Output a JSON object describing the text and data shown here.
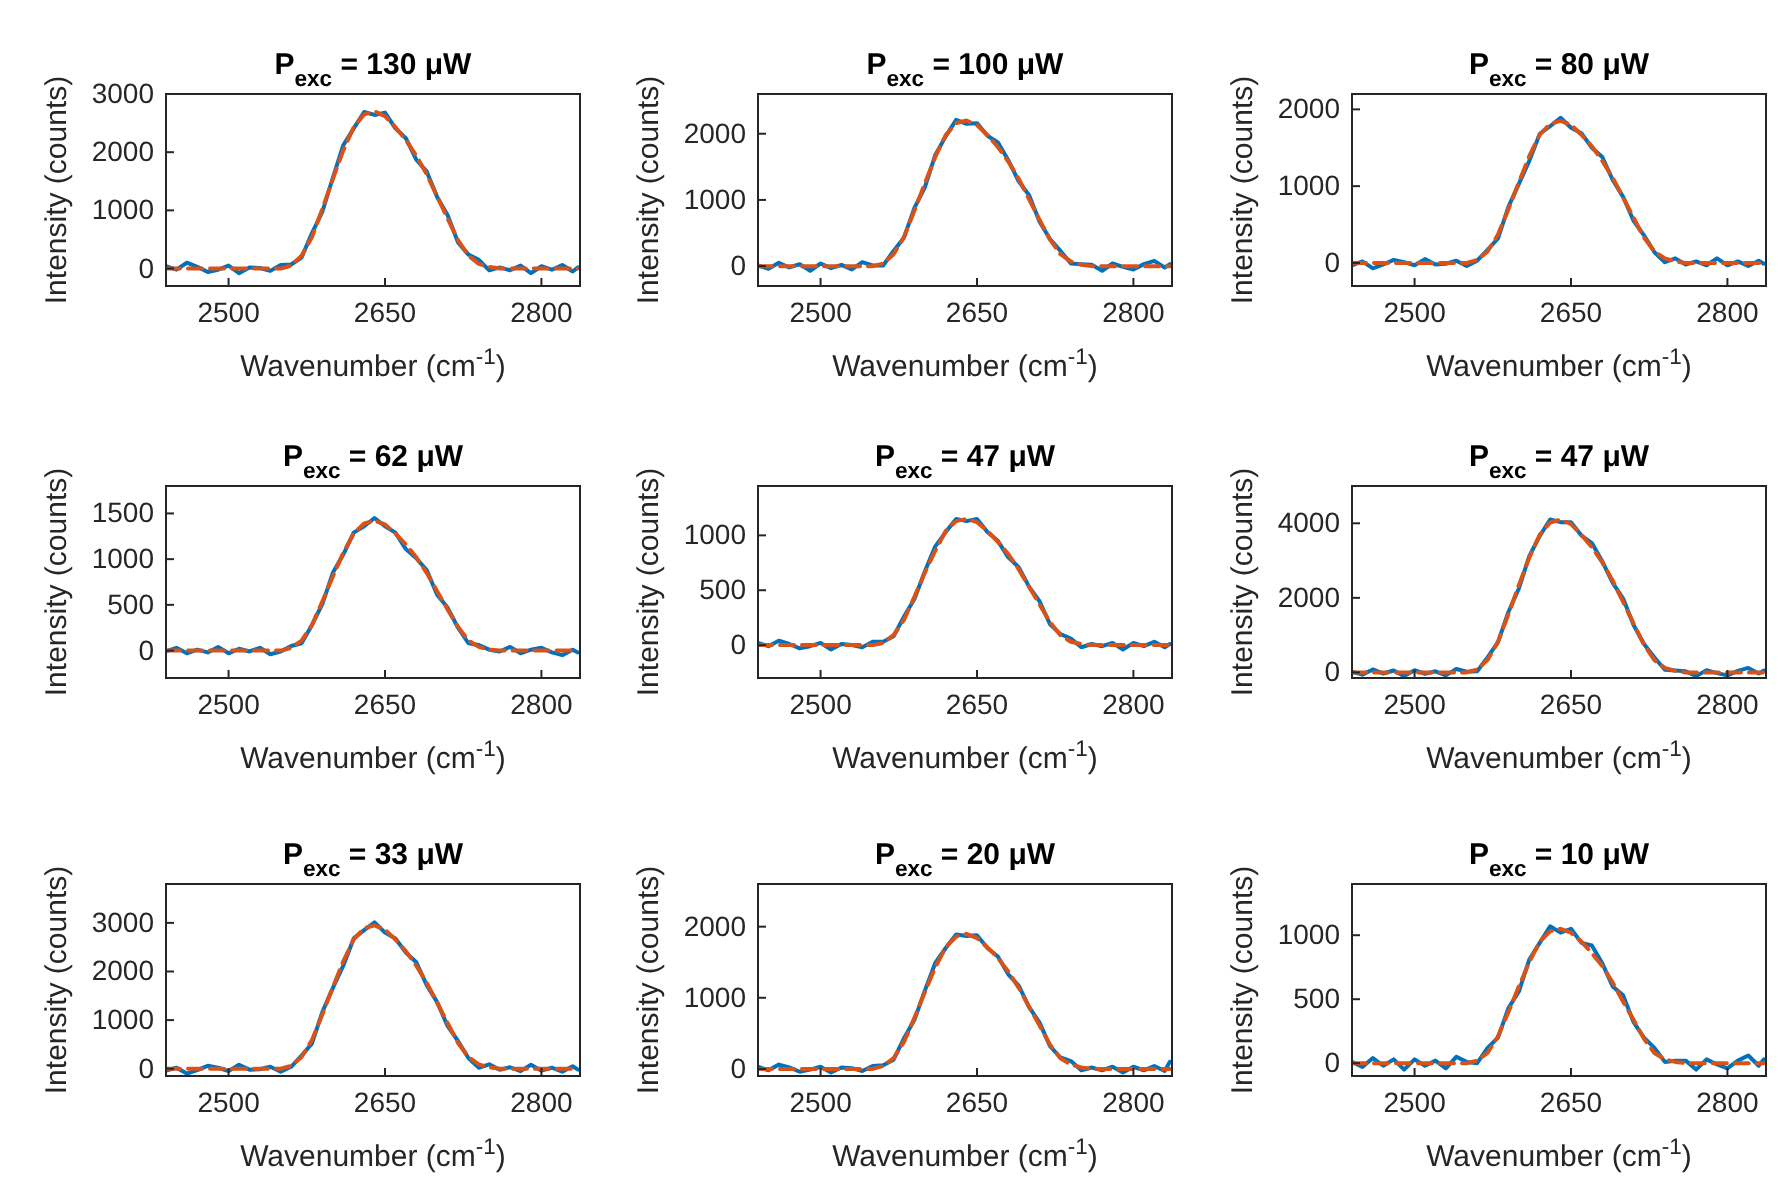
{
  "chart_data": [
    {
      "type": "line",
      "title": "P$_{exc}$ = 130 μW",
      "xlabel": "Wavenumber (cm$^{-1}$)",
      "ylabel": "Intensity (counts)",
      "xlim": [
        2440,
        2837
      ],
      "xticks": [
        2500,
        2650,
        2800
      ],
      "ylim": [
        -300,
        3000
      ],
      "yticks": [
        0,
        1000,
        2000,
        3000
      ],
      "x": [
        2440,
        2450,
        2460,
        2470,
        2480,
        2490,
        2500,
        2510,
        2520,
        2530,
        2540,
        2550,
        2560,
        2570,
        2580,
        2590,
        2600,
        2610,
        2620,
        2630,
        2640,
        2650,
        2660,
        2670,
        2680,
        2690,
        2700,
        2710,
        2720,
        2730,
        2740,
        2750,
        2760,
        2770,
        2780,
        2790,
        2800,
        2810,
        2820,
        2830,
        2835
      ],
      "series": [
        {
          "color": "#0072bd",
          "line_style": "solid",
          "values": [
            40,
            -20,
            100,
            30,
            -60,
            -20,
            50,
            -80,
            20,
            10,
            -40,
            60,
            70,
            190,
            610,
            980,
            1560,
            2120,
            2410,
            2690,
            2640,
            2680,
            2410,
            2240,
            1870,
            1670,
            1230,
            920,
            450,
            240,
            150,
            -30,
            20,
            -30,
            50,
            -80,
            40,
            -20,
            60,
            -50,
            20
          ]
        },
        {
          "color": "#d95319",
          "line_style": "dashed",
          "values": [
            0,
            0,
            0,
            0,
            0,
            0,
            0,
            0,
            0,
            0,
            0,
            0,
            50,
            220,
            540,
            1030,
            1540,
            2030,
            2430,
            2650,
            2700,
            2620,
            2430,
            2210,
            1940,
            1620,
            1240,
            860,
            490,
            220,
            80,
            30,
            0,
            0,
            0,
            0,
            0,
            0,
            0,
            0,
            0
          ]
        }
      ]
    },
    {
      "type": "line",
      "title": "P$_{exc}$ = 100 μW",
      "xlabel": "Wavenumber (cm$^{-1}$)",
      "ylabel": "Intensity (counts)",
      "xlim": [
        2440,
        2837
      ],
      "xticks": [
        2500,
        2650,
        2800
      ],
      "ylim": [
        -300,
        2600
      ],
      "yticks": [
        0,
        1000,
        2000
      ],
      "x": [
        2440,
        2450,
        2460,
        2470,
        2480,
        2490,
        2500,
        2510,
        2520,
        2530,
        2540,
        2550,
        2560,
        2570,
        2580,
        2590,
        2600,
        2610,
        2620,
        2630,
        2640,
        2650,
        2660,
        2670,
        2680,
        2690,
        2700,
        2710,
        2720,
        2730,
        2740,
        2750,
        2760,
        2770,
        2780,
        2790,
        2800,
        2810,
        2820,
        2830,
        2835
      ],
      "series": [
        {
          "color": "#0072bd",
          "line_style": "solid",
          "values": [
            10,
            -40,
            50,
            -20,
            30,
            -70,
            40,
            -30,
            20,
            -50,
            60,
            10,
            10,
            230,
            430,
            880,
            1190,
            1680,
            1960,
            2210,
            2150,
            2160,
            1970,
            1870,
            1600,
            1280,
            1070,
            670,
            410,
            230,
            40,
            30,
            20,
            -70,
            40,
            -10,
            -50,
            30,
            80,
            -20,
            30
          ]
        },
        {
          "color": "#d95319",
          "line_style": "dashed",
          "values": [
            0,
            0,
            0,
            0,
            0,
            0,
            0,
            0,
            0,
            0,
            0,
            0,
            40,
            180,
            440,
            840,
            1250,
            1650,
            1980,
            2160,
            2200,
            2130,
            1980,
            1800,
            1580,
            1320,
            1010,
            700,
            400,
            180,
            70,
            20,
            0,
            0,
            0,
            0,
            0,
            0,
            0,
            0,
            0
          ]
        }
      ]
    },
    {
      "type": "line",
      "title": "P$_{exc}$ = 80 μW",
      "xlabel": "Wavenumber (cm$^{-1}$)",
      "ylabel": "Intensity (counts)",
      "xlim": [
        2440,
        2837
      ],
      "xticks": [
        2500,
        2650,
        2800
      ],
      "ylim": [
        -300,
        2200
      ],
      "yticks": [
        0,
        1000,
        2000
      ],
      "x": [
        2440,
        2450,
        2460,
        2470,
        2480,
        2490,
        2500,
        2510,
        2520,
        2530,
        2540,
        2550,
        2560,
        2570,
        2580,
        2590,
        2600,
        2610,
        2620,
        2630,
        2640,
        2650,
        2660,
        2670,
        2680,
        2690,
        2700,
        2710,
        2720,
        2730,
        2740,
        2750,
        2760,
        2770,
        2780,
        2790,
        2800,
        2810,
        2820,
        2830,
        2835
      ],
      "series": [
        {
          "color": "#0072bd",
          "line_style": "solid",
          "values": [
            -30,
            20,
            -70,
            -20,
            40,
            10,
            -30,
            50,
            -20,
            -10,
            30,
            -40,
            30,
            170,
            320,
            730,
            1030,
            1330,
            1680,
            1780,
            1890,
            1760,
            1690,
            1500,
            1380,
            1080,
            860,
            550,
            360,
            140,
            10,
            60,
            -20,
            20,
            -30,
            60,
            -30,
            20,
            -40,
            30,
            -10
          ]
        },
        {
          "color": "#d95319",
          "line_style": "dashed",
          "values": [
            0,
            0,
            0,
            0,
            0,
            0,
            0,
            0,
            0,
            0,
            0,
            0,
            40,
            150,
            370,
            700,
            1050,
            1390,
            1670,
            1810,
            1850,
            1800,
            1670,
            1520,
            1330,
            1110,
            850,
            590,
            330,
            150,
            60,
            20,
            0,
            0,
            0,
            0,
            0,
            0,
            0,
            0,
            0
          ]
        }
      ]
    },
    {
      "type": "line",
      "title": "P$_{exc}$ = 62 μW",
      "xlabel": "Wavenumber (cm$^{-1}$)",
      "ylabel": "Intensity (counts)",
      "xlim": [
        2440,
        2837
      ],
      "xticks": [
        2500,
        2650,
        2800
      ],
      "ylim": [
        -300,
        1800
      ],
      "yticks": [
        0,
        500,
        1000,
        1500
      ],
      "x": [
        2440,
        2450,
        2460,
        2470,
        2480,
        2490,
        2500,
        2510,
        2520,
        2530,
        2540,
        2550,
        2560,
        2570,
        2580,
        2590,
        2600,
        2610,
        2620,
        2630,
        2640,
        2650,
        2660,
        2670,
        2680,
        2690,
        2700,
        2710,
        2720,
        2730,
        2740,
        2750,
        2760,
        2770,
        2780,
        2790,
        2800,
        2810,
        2820,
        2830,
        2835
      ],
      "series": [
        {
          "color": "#0072bd",
          "line_style": "solid",
          "values": [
            -10,
            30,
            -30,
            10,
            -20,
            40,
            -30,
            20,
            -10,
            30,
            -40,
            -10,
            50,
            80,
            280,
            510,
            850,
            1050,
            1290,
            1360,
            1450,
            1360,
            1290,
            1110,
            1010,
            880,
            610,
            470,
            250,
            80,
            60,
            10,
            -10,
            40,
            -30,
            10,
            30,
            -20,
            -50,
            10,
            -20
          ]
        },
        {
          "color": "#d95319",
          "line_style": "dashed",
          "values": [
            0,
            0,
            0,
            0,
            0,
            0,
            0,
            0,
            0,
            0,
            0,
            0,
            30,
            110,
            280,
            540,
            810,
            1070,
            1280,
            1390,
            1420,
            1380,
            1280,
            1160,
            1020,
            850,
            650,
            450,
            260,
            110,
            40,
            10,
            0,
            0,
            0,
            0,
            0,
            0,
            0,
            0,
            0
          ]
        }
      ]
    },
    {
      "type": "line",
      "title": "P$_{exc}$ = 47 μW",
      "xlabel": "Wavenumber (cm$^{-1}$)",
      "ylabel": "Intensity (counts)",
      "xlim": [
        2440,
        2837
      ],
      "xticks": [
        2500,
        2650,
        2800
      ],
      "ylim": [
        -300,
        1450
      ],
      "yticks": [
        0,
        500,
        1000
      ],
      "x": [
        2440,
        2450,
        2460,
        2470,
        2480,
        2490,
        2500,
        2510,
        2520,
        2530,
        2540,
        2550,
        2560,
        2570,
        2580,
        2590,
        2600,
        2610,
        2620,
        2630,
        2640,
        2650,
        2660,
        2670,
        2680,
        2690,
        2700,
        2710,
        2720,
        2730,
        2740,
        2750,
        2760,
        2770,
        2780,
        2790,
        2800,
        2810,
        2820,
        2830,
        2835
      ],
      "series": [
        {
          "color": "#0072bd",
          "line_style": "solid",
          "values": [
            20,
            -10,
            40,
            10,
            -30,
            -10,
            20,
            -40,
            10,
            0,
            -20,
            30,
            30,
            80,
            260,
            420,
            670,
            900,
            1030,
            1150,
            1130,
            1150,
            1030,
            950,
            800,
            710,
            530,
            400,
            190,
            100,
            60,
            -20,
            10,
            -10,
            20,
            -40,
            20,
            -10,
            30,
            -20,
            10
          ]
        },
        {
          "color": "#d95319",
          "line_style": "dashed",
          "values": [
            0,
            0,
            0,
            0,
            0,
            0,
            0,
            0,
            0,
            0,
            0,
            0,
            20,
            90,
            230,
            440,
            660,
            860,
            1040,
            1130,
            1150,
            1120,
            1040,
            940,
            830,
            690,
            530,
            370,
            210,
            90,
            30,
            10,
            0,
            0,
            0,
            0,
            0,
            0,
            0,
            0,
            0
          ]
        }
      ]
    },
    {
      "type": "line",
      "title": "P$_{exc}$ = 47 μW",
      "xlabel": "Wavenumber (cm$^{-1}$)",
      "ylabel": "Intensity (counts)",
      "xlim": [
        2440,
        2837
      ],
      "xticks": [
        2500,
        2650,
        2800
      ],
      "ylim": [
        -150,
        5000
      ],
      "yticks": [
        0,
        2000,
        4000
      ],
      "x": [
        2440,
        2450,
        2460,
        2470,
        2480,
        2490,
        2500,
        2510,
        2520,
        2530,
        2540,
        2550,
        2560,
        2570,
        2580,
        2590,
        2600,
        2610,
        2620,
        2630,
        2640,
        2650,
        2660,
        2670,
        2680,
        2690,
        2700,
        2710,
        2720,
        2730,
        2740,
        2750,
        2760,
        2770,
        2780,
        2790,
        2800,
        2810,
        2820,
        2830,
        2835
      ],
      "series": [
        {
          "color": "#0072bd",
          "line_style": "solid",
          "values": [
            20,
            -60,
            80,
            -30,
            50,
            -100,
            60,
            -40,
            30,
            -80,
            90,
            20,
            30,
            400,
            810,
            1620,
            2250,
            3120,
            3660,
            4100,
            4030,
            4030,
            3670,
            3470,
            2980,
            2400,
            1980,
            1270,
            760,
            400,
            70,
            50,
            30,
            -100,
            60,
            -20,
            -80,
            40,
            120,
            -30,
            50
          ]
        },
        {
          "color": "#d95319",
          "line_style": "dashed",
          "values": [
            0,
            0,
            0,
            0,
            0,
            0,
            0,
            0,
            0,
            0,
            0,
            0,
            80,
            330,
            820,
            1560,
            2340,
            3080,
            3690,
            4020,
            4100,
            3980,
            3690,
            3360,
            2950,
            2460,
            1890,
            1310,
            740,
            330,
            120,
            40,
            0,
            0,
            0,
            0,
            0,
            0,
            0,
            0,
            0
          ]
        }
      ]
    },
    {
      "type": "line",
      "title": "P$_{exc}$ = 33 μW",
      "xlabel": "Wavenumber (cm$^{-1}$)",
      "ylabel": "Intensity (counts)",
      "xlim": [
        2440,
        2837
      ],
      "xticks": [
        2500,
        2650,
        2800
      ],
      "ylim": [
        -150,
        3800
      ],
      "yticks": [
        0,
        1000,
        2000,
        3000
      ],
      "x": [
        2440,
        2450,
        2460,
        2470,
        2480,
        2490,
        2500,
        2510,
        2520,
        2530,
        2540,
        2550,
        2560,
        2570,
        2580,
        2590,
        2600,
        2610,
        2620,
        2630,
        2640,
        2650,
        2660,
        2670,
        2680,
        2690,
        2700,
        2710,
        2720,
        2730,
        2740,
        2750,
        2760,
        2770,
        2780,
        2790,
        2800,
        2810,
        2820,
        2830,
        2835
      ],
      "series": [
        {
          "color": "#0072bd",
          "line_style": "solid",
          "values": [
            -40,
            20,
            -100,
            -30,
            60,
            20,
            -50,
            80,
            -20,
            -10,
            40,
            -60,
            40,
            270,
            520,
            1170,
            1660,
            2120,
            2680,
            2850,
            3010,
            2800,
            2680,
            2390,
            2190,
            1720,
            1370,
            880,
            570,
            220,
            20,
            90,
            -20,
            30,
            -50,
            80,
            -40,
            20,
            -60,
            50,
            -20
          ]
        },
        {
          "color": "#d95319",
          "line_style": "dashed",
          "values": [
            0,
            0,
            0,
            0,
            0,
            0,
            0,
            0,
            0,
            0,
            0,
            0,
            60,
            240,
            590,
            1120,
            1680,
            2210,
            2660,
            2890,
            2950,
            2860,
            2660,
            2420,
            2120,
            1770,
            1360,
            940,
            530,
            240,
            90,
            30,
            0,
            0,
            0,
            0,
            0,
            0,
            0,
            0,
            0
          ]
        }
      ]
    },
    {
      "type": "line",
      "title": "P$_{exc}$ = 20 μW",
      "xlabel": "Wavenumber (cm$^{-1}$)",
      "ylabel": "Intensity (counts)",
      "xlim": [
        2440,
        2837
      ],
      "xticks": [
        2500,
        2650,
        2800
      ],
      "ylim": [
        -100,
        2600
      ],
      "yticks": [
        0,
        1000,
        2000
      ],
      "x": [
        2440,
        2450,
        2460,
        2470,
        2480,
        2490,
        2500,
        2510,
        2520,
        2530,
        2540,
        2550,
        2560,
        2570,
        2580,
        2590,
        2600,
        2610,
        2620,
        2630,
        2640,
        2650,
        2660,
        2670,
        2680,
        2690,
        2700,
        2710,
        2720,
        2730,
        2740,
        2750,
        2760,
        2770,
        2780,
        2790,
        2800,
        2810,
        2820,
        2830,
        2835
      ],
      "series": [
        {
          "color": "#0072bd",
          "line_style": "solid",
          "values": [
            30,
            -20,
            60,
            20,
            -40,
            -10,
            30,
            -50,
            20,
            10,
            -30,
            40,
            50,
            130,
            430,
            690,
            1100,
            1490,
            1700,
            1890,
            1870,
            1880,
            1700,
            1580,
            1330,
            1170,
            870,
            650,
            320,
            160,
            110,
            -20,
            20,
            -20,
            30,
            -50,
            30,
            -20,
            40,
            -30,
            100
          ]
        },
        {
          "color": "#d95319",
          "line_style": "dashed",
          "values": [
            0,
            0,
            0,
            0,
            0,
            0,
            0,
            0,
            0,
            0,
            0,
            0,
            40,
            150,
            380,
            720,
            1080,
            1430,
            1710,
            1860,
            1900,
            1840,
            1710,
            1560,
            1370,
            1140,
            870,
            610,
            340,
            150,
            60,
            20,
            0,
            0,
            0,
            0,
            0,
            0,
            0,
            0,
            0
          ]
        }
      ]
    },
    {
      "type": "line",
      "title": "P$_{exc}$ = 10 μW",
      "xlabel": "Wavenumber (cm$^{-1}$)",
      "ylabel": "Intensity (counts)",
      "xlim": [
        2440,
        2837
      ],
      "xticks": [
        2500,
        2650,
        2800
      ],
      "ylim": [
        -100,
        1400
      ],
      "yticks": [
        0,
        500,
        1000
      ],
      "x": [
        2440,
        2450,
        2460,
        2470,
        2480,
        2490,
        2500,
        2510,
        2520,
        2530,
        2540,
        2550,
        2560,
        2570,
        2580,
        2590,
        2600,
        2610,
        2620,
        2630,
        2640,
        2650,
        2660,
        2670,
        2680,
        2690,
        2700,
        2710,
        2720,
        2730,
        2740,
        2750,
        2760,
        2770,
        2780,
        2790,
        2800,
        2810,
        2820,
        2830,
        2835
      ],
      "series": [
        {
          "color": "#0072bd",
          "line_style": "solid",
          "values": [
            10,
            -30,
            40,
            -20,
            30,
            -50,
            30,
            -20,
            20,
            -40,
            50,
            10,
            0,
            120,
            200,
            430,
            560,
            810,
            940,
            1070,
            1020,
            1050,
            940,
            920,
            780,
            600,
            530,
            320,
            200,
            120,
            10,
            20,
            20,
            -50,
            30,
            -10,
            -40,
            20,
            60,
            -20,
            30
          ]
        },
        {
          "color": "#d95319",
          "line_style": "dashed",
          "values": [
            0,
            0,
            0,
            0,
            0,
            0,
            0,
            0,
            0,
            0,
            0,
            0,
            20,
            80,
            210,
            400,
            600,
            790,
            950,
            1030,
            1050,
            1020,
            950,
            860,
            760,
            630,
            480,
            340,
            190,
            80,
            30,
            10,
            0,
            0,
            0,
            0,
            0,
            0,
            0,
            0,
            0
          ]
        }
      ]
    }
  ]
}
